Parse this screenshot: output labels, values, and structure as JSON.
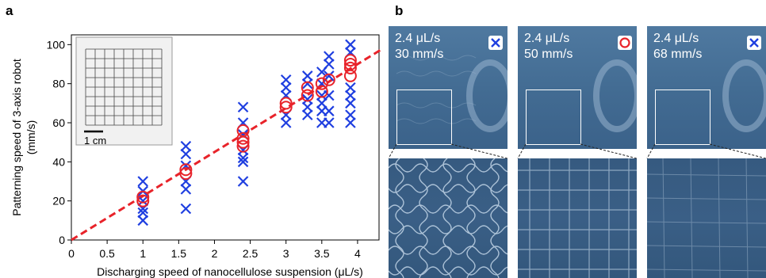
{
  "figure": {
    "panel_a_label": "a",
    "panel_b_label": "b"
  },
  "chart_data": {
    "type": "scatter",
    "title": "",
    "xlabel": "Discharging speed of nanocellulose suspension (μL/s)",
    "ylabel_line1": "Patterning speed of 3-axis robot",
    "ylabel_line2": "(mm/s)",
    "xlim": [
      0,
      4.3
    ],
    "ylim": [
      0,
      105
    ],
    "xticks": [
      0,
      0.5,
      1,
      1.5,
      2,
      2.5,
      3,
      3.5,
      4
    ],
    "xtick_labels": [
      "0",
      "0.5",
      "1",
      "1.5",
      "2",
      "2.5",
      "3",
      "3.5",
      "4"
    ],
    "yticks": [
      0,
      20,
      40,
      60,
      80,
      100
    ],
    "ytick_labels": [
      "0",
      "20",
      "40",
      "60",
      "80",
      "100"
    ],
    "grid": false,
    "inset_scale_label": "1 cm",
    "series": [
      {
        "marker": "cross",
        "color": "#1f3fe0",
        "points": [
          [
            1.0,
            10
          ],
          [
            1.0,
            14
          ],
          [
            1.0,
            16
          ],
          [
            1.0,
            20
          ],
          [
            1.0,
            25
          ],
          [
            1.0,
            30
          ],
          [
            1.6,
            16
          ],
          [
            1.6,
            26
          ],
          [
            1.6,
            30
          ],
          [
            1.6,
            38
          ],
          [
            1.6,
            44
          ],
          [
            1.6,
            48
          ],
          [
            2.4,
            30
          ],
          [
            2.4,
            40
          ],
          [
            2.4,
            42
          ],
          [
            2.4,
            46
          ],
          [
            2.4,
            54
          ],
          [
            2.4,
            60
          ],
          [
            2.4,
            68
          ],
          [
            3.0,
            60
          ],
          [
            3.0,
            64
          ],
          [
            3.0,
            74
          ],
          [
            3.0,
            78
          ],
          [
            3.0,
            82
          ],
          [
            3.3,
            64
          ],
          [
            3.3,
            68
          ],
          [
            3.3,
            72
          ],
          [
            3.3,
            80
          ],
          [
            3.3,
            84
          ],
          [
            3.5,
            60
          ],
          [
            3.5,
            66
          ],
          [
            3.5,
            70
          ],
          [
            3.5,
            74
          ],
          [
            3.5,
            80
          ],
          [
            3.5,
            86
          ],
          [
            3.6,
            60
          ],
          [
            3.6,
            66
          ],
          [
            3.6,
            74
          ],
          [
            3.6,
            84
          ],
          [
            3.6,
            90
          ],
          [
            3.6,
            94
          ],
          [
            3.9,
            60
          ],
          [
            3.9,
            64
          ],
          [
            3.9,
            70
          ],
          [
            3.9,
            74
          ],
          [
            3.9,
            78
          ],
          [
            3.9,
            96
          ],
          [
            3.9,
            100
          ]
        ]
      },
      {
        "marker": "circle",
        "color": "#e8232a",
        "points": [
          [
            1.0,
            20
          ],
          [
            1.0,
            22
          ],
          [
            1.6,
            34
          ],
          [
            1.6,
            36
          ],
          [
            2.4,
            48
          ],
          [
            2.4,
            50
          ],
          [
            2.4,
            52
          ],
          [
            2.4,
            56
          ],
          [
            3.0,
            68
          ],
          [
            3.0,
            70
          ],
          [
            3.3,
            74
          ],
          [
            3.3,
            78
          ],
          [
            3.5,
            76
          ],
          [
            3.5,
            80
          ],
          [
            3.6,
            82
          ],
          [
            3.9,
            84
          ],
          [
            3.9,
            88
          ],
          [
            3.9,
            90
          ],
          [
            3.9,
            92
          ]
        ]
      }
    ],
    "fit_line": {
      "style": "dashed",
      "color": "#e8232a",
      "x": [
        0,
        4.35
      ],
      "y": [
        0,
        97.9
      ]
    }
  },
  "panel_b": {
    "columns": [
      {
        "line1": "2.4 μL/s",
        "line2": "30 mm/s",
        "marker": "cross-icon",
        "pattern": "wavy"
      },
      {
        "line1": "2.4 μL/s",
        "line2": "50 mm/s",
        "marker": "circle-icon",
        "pattern": "grid"
      },
      {
        "line1": "2.4 μL/s",
        "line2": "68 mm/s",
        "marker": "cross-icon",
        "pattern": "faint"
      }
    ]
  }
}
